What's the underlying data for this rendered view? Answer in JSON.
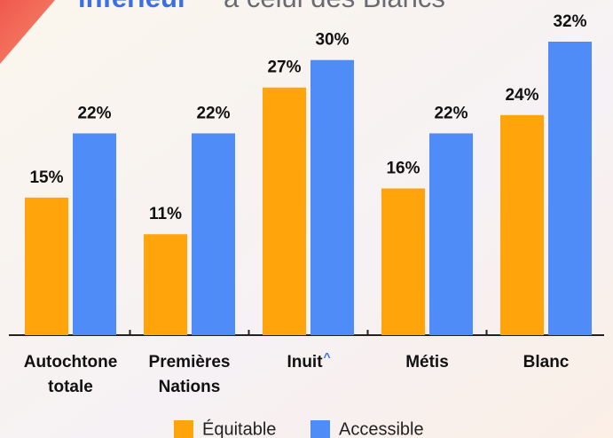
{
  "chart_data": {
    "type": "bar",
    "title": [
      "inférieur",
      "à celui des Blancs"
    ],
    "categories": [
      "Autochtone totale",
      "Premières Nations",
      "Inuit",
      "Métis",
      "Blanc"
    ],
    "category_marks": [
      null,
      null,
      "^",
      null,
      null
    ],
    "series": [
      {
        "name": "Équitable",
        "color": "#ffa40a",
        "values": [
          15,
          11,
          27,
          16,
          24
        ],
        "value_labels": [
          "15%",
          "11%",
          "27%",
          "16%",
          "24%"
        ]
      },
      {
        "name": "Accessible",
        "color": "#4f8cf8",
        "values": [
          22,
          22,
          30,
          22,
          32
        ],
        "value_labels": [
          "22%",
          "22%",
          "30%",
          "22%",
          "32%"
        ]
      }
    ]
  }
}
